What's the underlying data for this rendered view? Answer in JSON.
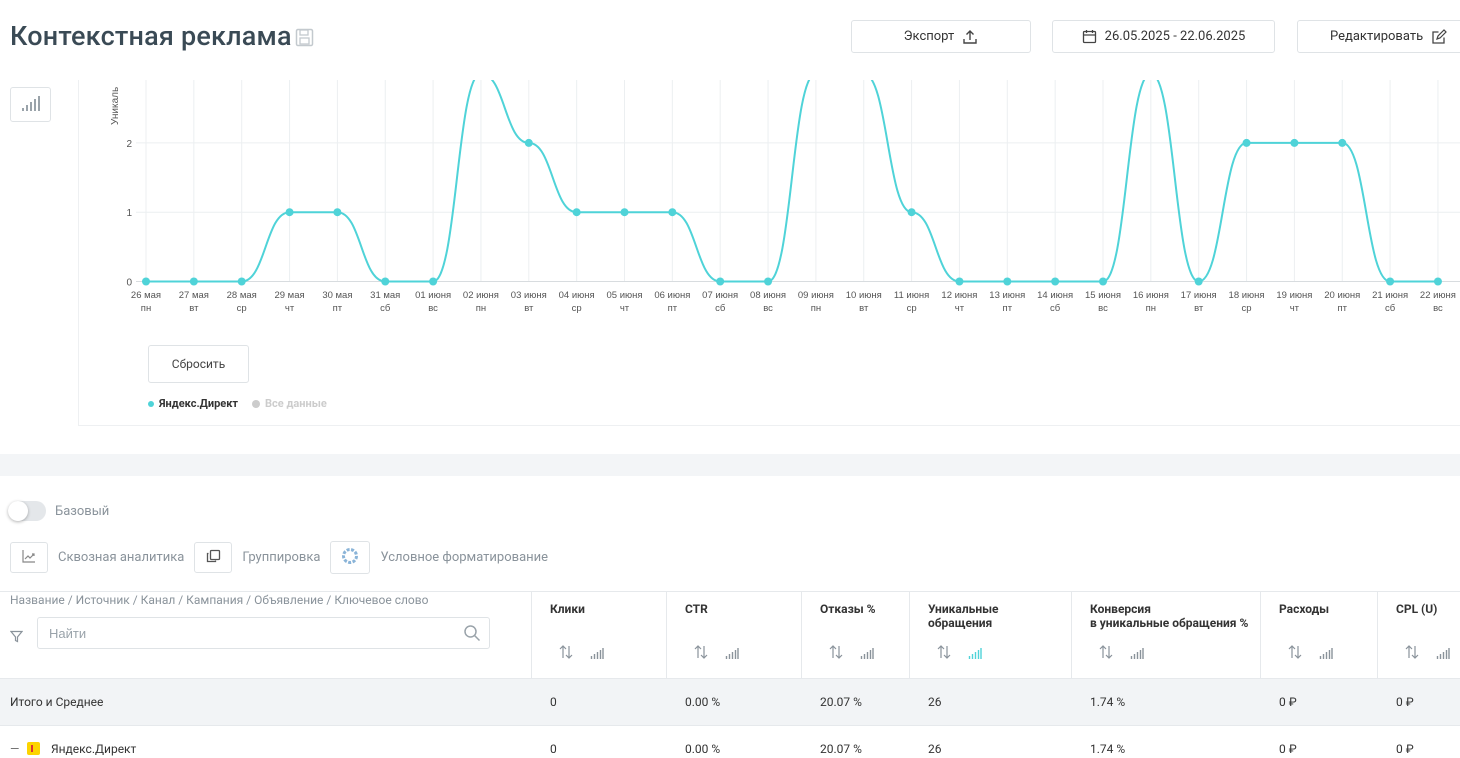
{
  "header": {
    "title": "Контекстная реклама",
    "export_label": "Экспорт",
    "date_range": "26.05.2025 - 22.06.2025",
    "edit_label": "Редактировать"
  },
  "colors": {
    "accent": "#4fd3d8",
    "grid": "#eceff1",
    "legend_inactive": "#cccccc"
  },
  "chart_data": {
    "type": "line",
    "ylabel": "Уникаль",
    "ylim": [
      0,
      3
    ],
    "yticks": [
      0,
      1,
      2
    ],
    "categories": [
      "26 мая",
      "27 мая",
      "28 мая",
      "29 мая",
      "30 мая",
      "31 мая",
      "01 июня",
      "02 июня",
      "03 июня",
      "04 июня",
      "05 июня",
      "06 июня",
      "07 июня",
      "08 июня",
      "09 июня",
      "10 июня",
      "11 июня",
      "12 июня",
      "13 июня",
      "14 июня",
      "15 июня",
      "16 июня",
      "17 июня",
      "18 июня",
      "19 июня",
      "20 июня",
      "21 июня",
      "22 июня"
    ],
    "weekdays": [
      "пн",
      "вт",
      "ср",
      "чт",
      "пт",
      "сб",
      "вс",
      "пн",
      "вт",
      "ср",
      "чт",
      "пт",
      "сб",
      "вс",
      "пн",
      "вт",
      "ср",
      "чт",
      "пт",
      "сб",
      "вс",
      "пн",
      "вт",
      "ср",
      "чт",
      "пт",
      "сб",
      "вс"
    ],
    "series": [
      {
        "name": "Яндекс.Директ",
        "values": [
          0,
          0,
          0,
          1,
          1,
          0,
          0,
          3,
          2,
          1,
          1,
          1,
          0,
          0,
          3,
          3,
          1,
          0,
          0,
          0,
          0,
          3,
          0,
          2,
          2,
          2,
          0,
          0
        ]
      }
    ],
    "legend": [
      {
        "label": "Яндекс.Директ",
        "active": true
      },
      {
        "label": "Все данные",
        "active": false
      }
    ],
    "grid": true,
    "legend_position": "bottom-left"
  },
  "chart_controls": {
    "reset_label": "Сбросить"
  },
  "toolbar": {
    "toggle_label": "Базовый",
    "analytics_label": "Сквозная аналитика",
    "grouping_label": "Группировка",
    "formatting_label": "Условное форматирование"
  },
  "table": {
    "name_header": "Название / Источник / Канал / Кампания / Объявление / Ключевое слово",
    "search_placeholder": "Найти",
    "columns": [
      {
        "title_lines": [
          "Клики"
        ]
      },
      {
        "title_lines": [
          "CTR"
        ]
      },
      {
        "title_lines": [
          "Отказы %"
        ]
      },
      {
        "title_lines": [
          "Уникальные",
          "обращения"
        ]
      },
      {
        "title_lines": [
          "Конверсия",
          "в уникальные обращения %"
        ]
      },
      {
        "title_lines": [
          "Расходы"
        ]
      },
      {
        "title_lines": [
          "CPL (U)"
        ]
      }
    ],
    "rows": [
      {
        "name": "Итого и Среднее",
        "values": [
          "0",
          "0.00 %",
          "20.07 %",
          "26",
          "1.74 %",
          "0 ₽",
          "0 ₽"
        ]
      },
      {
        "name": "Яндекс.Директ",
        "values": [
          "0",
          "0.00 %",
          "20.07 %",
          "26",
          "1.74 %",
          "0 ₽",
          "0 ₽"
        ]
      }
    ]
  }
}
